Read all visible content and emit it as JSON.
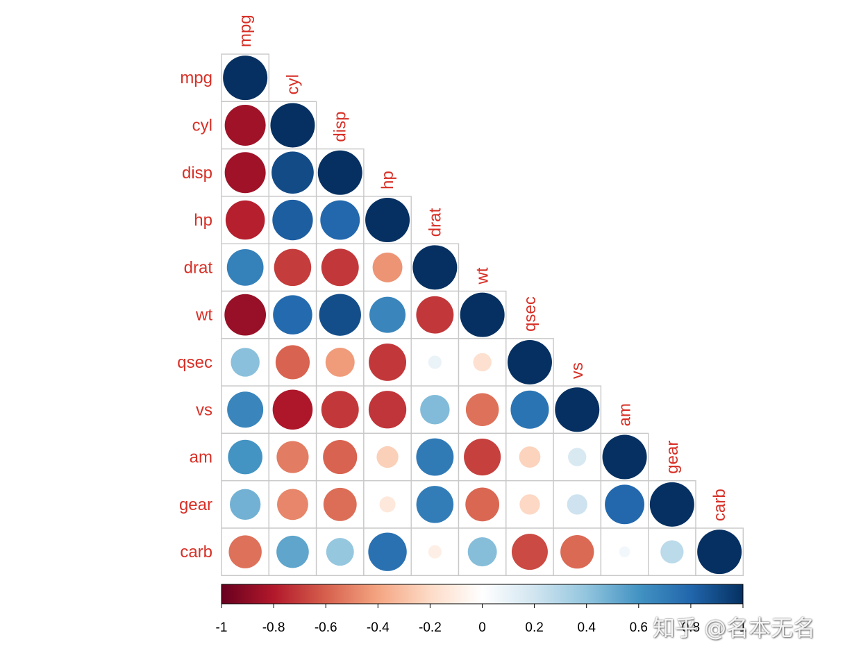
{
  "chart_data": {
    "type": "heatmap",
    "style": "corrplot-circle-lower-triangle",
    "variables": [
      "mpg",
      "cyl",
      "disp",
      "hp",
      "drat",
      "wt",
      "qsec",
      "vs",
      "am",
      "gear",
      "carb"
    ],
    "matrix": [
      [
        1.0,
        -0.85,
        -0.85,
        -0.78,
        0.68,
        -0.87,
        0.42,
        0.66,
        0.6,
        0.48,
        -0.55
      ],
      [
        -0.85,
        1.0,
        0.9,
        0.83,
        -0.7,
        0.78,
        -0.59,
        -0.81,
        -0.52,
        -0.49,
        0.53
      ],
      [
        -0.85,
        0.9,
        1.0,
        0.79,
        -0.71,
        0.89,
        -0.43,
        -0.71,
        -0.59,
        -0.56,
        0.39
      ],
      [
        -0.78,
        0.83,
        0.79,
        1.0,
        -0.45,
        0.66,
        -0.71,
        -0.72,
        -0.24,
        -0.13,
        0.75
      ],
      [
        0.68,
        -0.7,
        -0.71,
        -0.45,
        1.0,
        -0.71,
        0.09,
        0.44,
        0.71,
        0.7,
        -0.09
      ],
      [
        -0.87,
        0.78,
        0.89,
        0.66,
        -0.71,
        1.0,
        -0.17,
        -0.55,
        -0.69,
        -0.58,
        0.43
      ],
      [
        0.42,
        -0.59,
        -0.43,
        -0.71,
        0.09,
        -0.17,
        1.0,
        0.74,
        -0.23,
        -0.21,
        -0.66
      ],
      [
        0.66,
        -0.81,
        -0.71,
        -0.72,
        0.44,
        -0.55,
        0.74,
        1.0,
        0.17,
        0.21,
        -0.57
      ],
      [
        0.6,
        -0.52,
        -0.59,
        -0.24,
        0.71,
        -0.69,
        -0.23,
        0.17,
        1.0,
        0.79,
        0.06
      ],
      [
        0.48,
        -0.49,
        -0.56,
        -0.13,
        0.7,
        -0.58,
        -0.21,
        0.21,
        0.79,
        1.0,
        0.27
      ],
      [
        -0.55,
        0.53,
        0.39,
        0.75,
        -0.09,
        0.43,
        -0.66,
        -0.57,
        0.06,
        0.27,
        1.0
      ]
    ],
    "colorbar": {
      "range": [
        -1,
        1
      ],
      "ticks": [
        "-1",
        "-0.8",
        "-0.6",
        "-0.4",
        "-0.2",
        "0",
        "0.2",
        "0.4",
        "0.6",
        "0.8",
        "1"
      ],
      "stops": [
        "#67001f",
        "#b2182b",
        "#d6604d",
        "#f4a582",
        "#fddbc7",
        "#ffffff",
        "#d1e5f0",
        "#92c5de",
        "#4393c3",
        "#2166ac",
        "#053061"
      ]
    },
    "label_color": "#d73027"
  },
  "watermark": "知乎 @名本无名"
}
